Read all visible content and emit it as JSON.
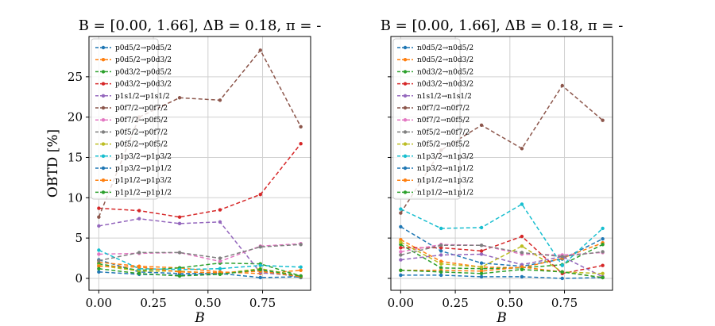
{
  "chart_data": [
    {
      "type": "line",
      "title": "B = [0.00, 1.66], ΔB = 0.18, π = -",
      "xlabel": "B",
      "ylabel": "OBTD [%]",
      "xlim": [
        -0.045,
        0.97
      ],
      "ylim": [
        -1.48,
        30
      ],
      "xticks": [
        "0.00",
        "0.25",
        "0.50",
        "0.75"
      ],
      "yticks": [
        "0",
        "5",
        "10",
        "15",
        "20",
        "25"
      ],
      "show_ytick_labels": true,
      "grid": true,
      "legend": "upper-left",
      "x": [
        0,
        0.185,
        0.37,
        0.555,
        0.74,
        0.925
      ],
      "series": [
        {
          "name": "p0d5/2→p0d5/2",
          "color": "#1f77b4",
          "values": [
            2.3,
            0.8,
            0.6,
            0.6,
            0.1,
            0.2
          ]
        },
        {
          "name": "p0d5/2→p0d3/2",
          "color": "#ff7f0e",
          "values": [
            2.0,
            1.5,
            1.3,
            0.8,
            0.6,
            1.0
          ]
        },
        {
          "name": "p0d3/2→p0d5/2",
          "color": "#2ca02c",
          "values": [
            1.8,
            1.0,
            1.3,
            1.9,
            1.8,
            0.3
          ]
        },
        {
          "name": "p0d3/2→p0d3/2",
          "color": "#d62728",
          "values": [
            8.7,
            8.4,
            7.6,
            8.5,
            10.4,
            16.7
          ]
        },
        {
          "name": "p1s1/2→p1s1/2",
          "color": "#9467bd",
          "values": [
            6.5,
            7.4,
            6.8,
            7.0,
            0.7,
            0.3
          ]
        },
        {
          "name": "p0f7/2→p0f7/2",
          "color": "#8c564b",
          "values": [
            7.6,
            20.0,
            22.4,
            22.1,
            28.3,
            18.8
          ]
        },
        {
          "name": "p0f7/2→p0f5/2",
          "color": "#e377c2",
          "values": [
            3.0,
            3.1,
            3.2,
            2.1,
            4.0,
            4.3
          ]
        },
        {
          "name": "p0f5/2→p0f7/2",
          "color": "#7f7f7f",
          "values": [
            2.2,
            3.2,
            3.2,
            2.5,
            3.9,
            4.2
          ]
        },
        {
          "name": "p0f5/2→p0f5/2",
          "color": "#bcbd22",
          "values": [
            1.6,
            0.9,
            0.9,
            0.6,
            1.2,
            0.3
          ]
        },
        {
          "name": "p1p3/2→p1p3/2",
          "color": "#17becf",
          "values": [
            3.5,
            1.2,
            1.1,
            1.2,
            1.6,
            1.4
          ]
        },
        {
          "name": "p1p3/2→p1p1/2",
          "color": "#1f77b4",
          "values": [
            0.8,
            0.5,
            0.4,
            0.6,
            1.0,
            0.1
          ]
        },
        {
          "name": "p1p1/2→p1p3/2",
          "color": "#ff7f0e",
          "values": [
            1.5,
            1.4,
            0.8,
            0.7,
            0.9,
            0.2
          ]
        },
        {
          "name": "p1p1/2→p1p1/2",
          "color": "#2ca02c",
          "values": [
            1.2,
            0.6,
            0.3,
            0.5,
            1.1,
            0.3
          ]
        }
      ]
    },
    {
      "type": "line",
      "title": "B = [0.00, 1.66], ΔB = 0.18, π = -",
      "xlabel": "B",
      "ylabel": "",
      "xlim": [
        -0.045,
        0.97
      ],
      "ylim": [
        -1.48,
        30
      ],
      "xticks": [
        "0.00",
        "0.25",
        "0.50",
        "0.75"
      ],
      "yticks": [
        "0",
        "5",
        "10",
        "15",
        "20",
        "25"
      ],
      "show_ytick_labels": false,
      "grid": true,
      "legend": "upper-left",
      "x": [
        0,
        0.185,
        0.37,
        0.555,
        0.74,
        0.925
      ],
      "series": [
        {
          "name": "n0d5/2→n0d5/2",
          "color": "#1f77b4",
          "values": [
            6.4,
            3.4,
            1.9,
            1.5,
            2.4,
            4.9
          ]
        },
        {
          "name": "n0d5/2→n0d3/2",
          "color": "#ff7f0e",
          "values": [
            4.8,
            2.1,
            1.4,
            1.3,
            2.5,
            4.4
          ]
        },
        {
          "name": "n0d3/2→n0d5/2",
          "color": "#2ca02c",
          "values": [
            4.2,
            1.3,
            1.2,
            1.3,
            1.7,
            4.2
          ]
        },
        {
          "name": "n0d3/2→n0d3/2",
          "color": "#d62728",
          "values": [
            3.8,
            3.8,
            3.4,
            5.2,
            0.6,
            1.6
          ]
        },
        {
          "name": "n1s1/2→n1s1/2",
          "color": "#9467bd",
          "values": [
            2.3,
            2.9,
            3.0,
            1.7,
            2.7,
            0.2
          ]
        },
        {
          "name": "n0f7/2→n0f7/2",
          "color": "#8c564b",
          "values": [
            8.1,
            15.9,
            19.0,
            16.1,
            23.9,
            19.6
          ]
        },
        {
          "name": "n0f7/2→n0f5/2",
          "color": "#e377c2",
          "values": [
            3.3,
            4.2,
            4.1,
            3.0,
            2.9,
            3.2
          ]
        },
        {
          "name": "n0f5/2→n0f7/2",
          "color": "#7f7f7f",
          "values": [
            2.9,
            4.1,
            4.1,
            3.2,
            2.7,
            3.3
          ]
        },
        {
          "name": "n0f5/2→n0f5/2",
          "color": "#bcbd22",
          "values": [
            4.5,
            1.8,
            1.4,
            4.0,
            0.8,
            0.6
          ]
        },
        {
          "name": "n1p3/2→n1p3/2",
          "color": "#17becf",
          "values": [
            8.6,
            6.2,
            6.3,
            9.2,
            1.6,
            6.2
          ]
        },
        {
          "name": "n1p3/2→n1p1/2",
          "color": "#1f77b4",
          "values": [
            0.4,
            0.4,
            0.2,
            0.2,
            0.0,
            0.1
          ]
        },
        {
          "name": "n1p1/2→n1p3/2",
          "color": "#ff7f0e",
          "values": [
            1.0,
            1.0,
            0.9,
            1.4,
            0.8,
            0.1
          ]
        },
        {
          "name": "n1p1/2→n1p1/2",
          "color": "#2ca02c",
          "values": [
            1.0,
            0.8,
            0.6,
            1.1,
            0.8,
            0.1
          ]
        }
      ]
    }
  ]
}
